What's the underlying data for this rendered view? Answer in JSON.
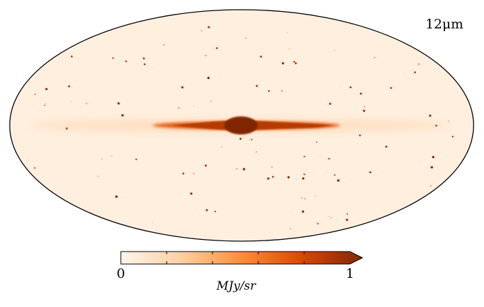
{
  "chart_data": {
    "type": "heatmap",
    "projection": "mollweide",
    "annotation": "12μm",
    "colorbar": {
      "label": "MJy/sr",
      "min": 0,
      "max": 1,
      "tick_labels": [
        "0",
        "1"
      ],
      "minor_ticks": [
        0.2,
        0.4,
        0.6,
        0.8
      ],
      "extend": "max",
      "colors": [
        "#fff5eb",
        "#fdd0a2",
        "#fd8d3c",
        "#d94801",
        "#7f2704"
      ]
    },
    "background_level": 0.04,
    "map_features": [
      {
        "feature": "galactic-plane-band",
        "level": 0.2
      },
      {
        "feature": "galactic-disk",
        "level": 0.85
      },
      {
        "feature": "galactic-bulge",
        "level": 1.0
      }
    ]
  }
}
